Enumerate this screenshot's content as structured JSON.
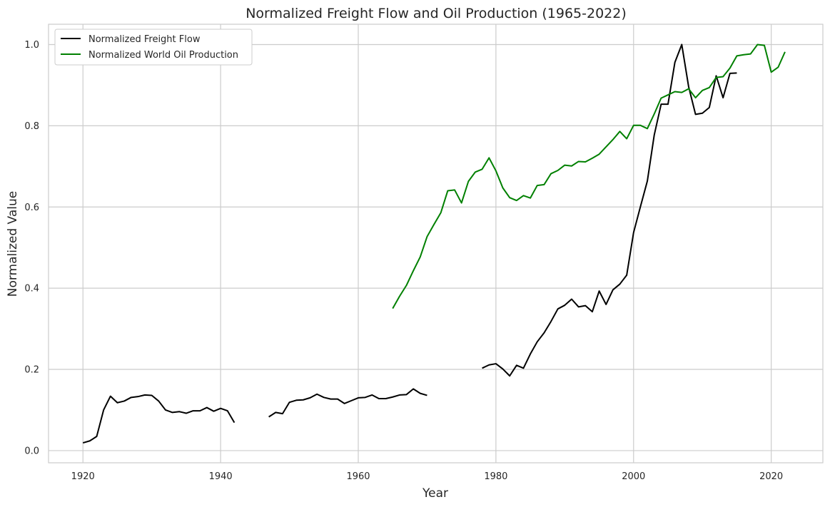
{
  "chart_data": {
    "type": "line",
    "title": "Normalized Freight Flow and Oil Production (1965-2022)",
    "xlabel": "Year",
    "ylabel": "Normalized Value",
    "xlim": [
      1915,
      2027.5
    ],
    "ylim": [
      -0.03,
      1.05
    ],
    "xticks": [
      1920,
      1940,
      1960,
      1980,
      2000,
      2020
    ],
    "yticks": [
      0.0,
      0.2,
      0.4,
      0.6,
      0.8,
      1.0
    ],
    "xtick_labels": [
      "1920",
      "1940",
      "1960",
      "1980",
      "2000",
      "2020"
    ],
    "ytick_labels": [
      "0.0",
      "0.2",
      "0.4",
      "0.6",
      "0.8",
      "1.0"
    ],
    "grid": true,
    "legend_position": "top-left",
    "series": [
      {
        "name": "Normalized Freight Flow",
        "color": "#000000",
        "points": [
          [
            1920,
            0.019
          ],
          [
            1921,
            0.024
          ],
          [
            1922,
            0.035
          ],
          [
            1923,
            0.1
          ],
          [
            1924,
            0.134
          ],
          [
            1925,
            0.118
          ],
          [
            1926,
            0.122
          ],
          [
            1927,
            0.131
          ],
          [
            1928,
            0.133
          ],
          [
            1929,
            0.137
          ],
          [
            1930,
            0.136
          ],
          [
            1931,
            0.122
          ],
          [
            1932,
            0.1
          ],
          [
            1933,
            0.094
          ],
          [
            1934,
            0.096
          ],
          [
            1935,
            0.092
          ],
          [
            1936,
            0.098
          ],
          [
            1937,
            0.098
          ],
          [
            1938,
            0.106
          ],
          [
            1939,
            0.097
          ],
          [
            1940,
            0.104
          ],
          [
            1941,
            0.098
          ],
          [
            1942,
            0.069
          ],
          null,
          [
            1947,
            0.083
          ],
          [
            1948,
            0.094
          ],
          [
            1949,
            0.091
          ],
          [
            1950,
            0.119
          ],
          [
            1951,
            0.124
          ],
          [
            1952,
            0.125
          ],
          [
            1953,
            0.13
          ],
          [
            1954,
            0.139
          ],
          [
            1955,
            0.131
          ],
          [
            1956,
            0.127
          ],
          [
            1957,
            0.127
          ],
          [
            1958,
            0.116
          ],
          [
            1959,
            0.123
          ],
          [
            1960,
            0.13
          ],
          [
            1961,
            0.131
          ],
          [
            1962,
            0.137
          ],
          [
            1963,
            0.128
          ],
          [
            1964,
            0.128
          ],
          [
            1965,
            0.132
          ],
          [
            1966,
            0.137
          ],
          [
            1967,
            0.138
          ],
          [
            1968,
            0.152
          ],
          [
            1969,
            0.141
          ],
          [
            1970,
            0.136
          ],
          null,
          [
            1978,
            0.203
          ],
          [
            1979,
            0.211
          ],
          [
            1980,
            0.214
          ],
          [
            1981,
            0.201
          ],
          [
            1982,
            0.184
          ],
          [
            1983,
            0.21
          ],
          [
            1984,
            0.203
          ],
          [
            1985,
            0.238
          ],
          [
            1986,
            0.268
          ],
          [
            1987,
            0.29
          ],
          [
            1988,
            0.318
          ],
          [
            1989,
            0.349
          ],
          [
            1990,
            0.358
          ],
          [
            1991,
            0.373
          ],
          [
            1992,
            0.354
          ],
          [
            1993,
            0.357
          ],
          [
            1994,
            0.342
          ],
          [
            1995,
            0.393
          ],
          [
            1996,
            0.36
          ],
          [
            1997,
            0.396
          ],
          [
            1998,
            0.41
          ],
          [
            1999,
            0.432
          ],
          [
            2000,
            0.537
          ],
          [
            2001,
            0.601
          ],
          [
            2002,
            0.664
          ],
          [
            2003,
            0.777
          ],
          [
            2004,
            0.853
          ],
          [
            2005,
            0.853
          ],
          [
            2006,
            0.956
          ],
          [
            2007,
            1.0
          ],
          [
            2008,
            0.896
          ],
          [
            2009,
            0.828
          ],
          [
            2010,
            0.831
          ],
          [
            2011,
            0.845
          ],
          [
            2012,
            0.923
          ],
          [
            2013,
            0.869
          ],
          [
            2014,
            0.929
          ],
          [
            2015,
            0.93
          ]
        ]
      },
      {
        "name": "Normalized World Oil Production",
        "color": "#008000",
        "points": [
          [
            1965,
            0.35
          ],
          [
            1966,
            0.38
          ],
          [
            1967,
            0.407
          ],
          [
            1968,
            0.443
          ],
          [
            1969,
            0.477
          ],
          [
            1970,
            0.527
          ],
          [
            1971,
            0.557
          ],
          [
            1972,
            0.586
          ],
          [
            1973,
            0.64
          ],
          [
            1974,
            0.642
          ],
          [
            1975,
            0.61
          ],
          [
            1976,
            0.663
          ],
          [
            1977,
            0.686
          ],
          [
            1978,
            0.693
          ],
          [
            1979,
            0.721
          ],
          [
            1980,
            0.689
          ],
          [
            1981,
            0.647
          ],
          [
            1982,
            0.623
          ],
          [
            1983,
            0.616
          ],
          [
            1984,
            0.628
          ],
          [
            1985,
            0.622
          ],
          [
            1986,
            0.653
          ],
          [
            1987,
            0.655
          ],
          [
            1988,
            0.682
          ],
          [
            1989,
            0.69
          ],
          [
            1990,
            0.703
          ],
          [
            1991,
            0.701
          ],
          [
            1992,
            0.712
          ],
          [
            1993,
            0.711
          ],
          [
            1994,
            0.72
          ],
          [
            1995,
            0.73
          ],
          [
            1996,
            0.748
          ],
          [
            1997,
            0.766
          ],
          [
            1998,
            0.786
          ],
          [
            1999,
            0.768
          ],
          [
            2000,
            0.801
          ],
          [
            2001,
            0.801
          ],
          [
            2002,
            0.793
          ],
          [
            2003,
            0.829
          ],
          [
            2004,
            0.868
          ],
          [
            2005,
            0.876
          ],
          [
            2006,
            0.884
          ],
          [
            2007,
            0.882
          ],
          [
            2008,
            0.891
          ],
          [
            2009,
            0.869
          ],
          [
            2010,
            0.887
          ],
          [
            2011,
            0.894
          ],
          [
            2012,
            0.919
          ],
          [
            2013,
            0.921
          ],
          [
            2014,
            0.942
          ],
          [
            2015,
            0.972
          ],
          [
            2016,
            0.975
          ],
          [
            2017,
            0.977
          ],
          [
            2018,
            1.0
          ],
          [
            2019,
            0.998
          ],
          [
            2020,
            0.932
          ],
          [
            2021,
            0.944
          ],
          [
            2022,
            0.982
          ]
        ]
      }
    ]
  }
}
